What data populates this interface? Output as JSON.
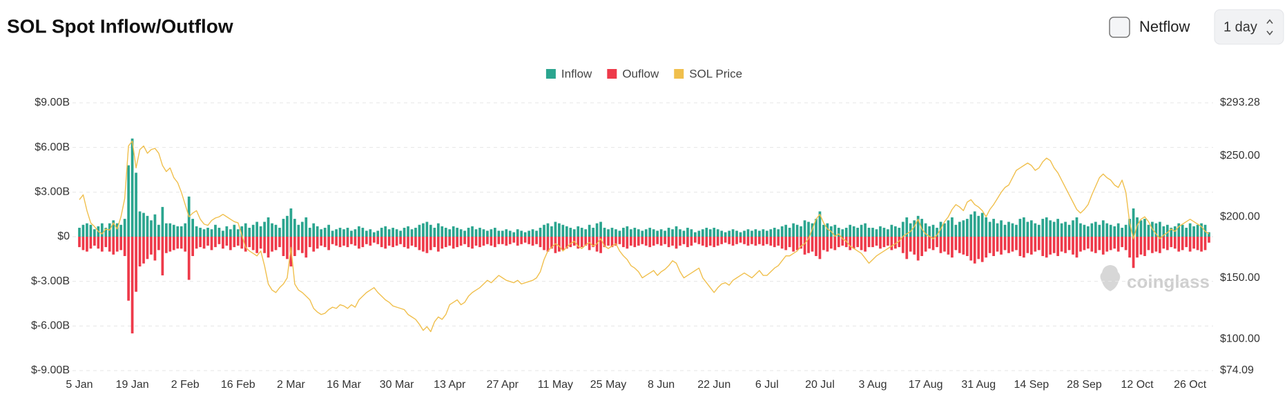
{
  "chart_data": {
    "type": "bar",
    "title": "SOL Spot Inflow/Outflow",
    "netflow_label": "Netflow",
    "interval": "1 day",
    "watermark": "coinglass",
    "legend": "top",
    "grid": true,
    "ylim": [
      -9,
      9
    ],
    "yticks": [
      {
        "value": 9,
        "label": "$9.00B"
      },
      {
        "value": 6,
        "label": "$6.00B"
      },
      {
        "value": 3,
        "label": "$3.00B"
      },
      {
        "value": 0,
        "label": "$0"
      },
      {
        "value": -3,
        "label": "$-3.00B"
      },
      {
        "value": -6,
        "label": "$-6.00B"
      },
      {
        "value": -9,
        "label": "$-9.00B"
      }
    ],
    "y2lim": [
      74.09,
      293.28
    ],
    "y2ticks": [
      {
        "value": 293.28,
        "label": "$293.28"
      },
      {
        "value": 250,
        "label": "$250.00"
      },
      {
        "value": 200,
        "label": "$200.00"
      },
      {
        "value": 150,
        "label": "$150.00"
      },
      {
        "value": 100,
        "label": "$100.00"
      },
      {
        "value": 74.09,
        "label": "$74.09"
      }
    ],
    "categories": [
      "5 Jan",
      null,
      null,
      null,
      null,
      null,
      null,
      null,
      null,
      null,
      null,
      null,
      null,
      null,
      "19 Jan",
      null,
      null,
      null,
      null,
      null,
      null,
      null,
      null,
      null,
      null,
      null,
      null,
      null,
      "2 Feb",
      null,
      null,
      null,
      null,
      null,
      null,
      null,
      null,
      null,
      null,
      null,
      null,
      null,
      "16 Feb",
      null,
      null,
      null,
      null,
      null,
      null,
      null,
      null,
      null,
      null,
      null,
      null,
      null,
      "2 Mar",
      null,
      null,
      null,
      null,
      null,
      null,
      null,
      null,
      null,
      null,
      null,
      null,
      null,
      "16 Mar",
      null,
      null,
      null,
      null,
      null,
      null,
      null,
      null,
      null,
      null,
      null,
      null,
      null,
      "30 Mar",
      null,
      null,
      null,
      null,
      null,
      null,
      null,
      null,
      null,
      null,
      null,
      null,
      null,
      "13 Apr",
      null,
      null,
      null,
      null,
      null,
      null,
      null,
      null,
      null,
      null,
      null,
      null,
      null,
      "27 Apr",
      null,
      null,
      null,
      null,
      null,
      null,
      null,
      null,
      null,
      null,
      null,
      null,
      null,
      "11 May",
      null,
      null,
      null,
      null,
      null,
      null,
      null,
      null,
      null,
      null,
      null,
      null,
      null,
      "25 May",
      null,
      null,
      null,
      null,
      null,
      null,
      null,
      null,
      null,
      null,
      null,
      null,
      null,
      "8 Jun",
      null,
      null,
      null,
      null,
      null,
      null,
      null,
      null,
      null,
      null,
      null,
      null,
      null,
      "22 Jun",
      null,
      null,
      null,
      null,
      null,
      null,
      null,
      null,
      null,
      null,
      null,
      null,
      null,
      "6 Jul",
      null,
      null,
      null,
      null,
      null,
      null,
      null,
      null,
      null,
      null,
      null,
      null,
      null,
      "20 Jul",
      null,
      null,
      null,
      null,
      null,
      null,
      null,
      null,
      null,
      null,
      null,
      null,
      null,
      "3 Aug",
      null,
      null,
      null,
      null,
      null,
      null,
      null,
      null,
      null,
      null,
      null,
      null,
      null,
      "17 Aug",
      null,
      null,
      null,
      null,
      null,
      null,
      null,
      null,
      null,
      null,
      null,
      null,
      null,
      "31 Aug",
      null,
      null,
      null,
      null,
      null,
      null,
      null,
      null,
      null,
      null,
      null,
      null,
      null,
      "14 Sep",
      null,
      null,
      null,
      null,
      null,
      null,
      null,
      null,
      null,
      null,
      null,
      null,
      null,
      "28 Sep",
      null,
      null,
      null,
      null,
      null,
      null,
      null,
      null,
      null,
      null,
      null,
      null,
      null,
      "12 Oct",
      null,
      null,
      null,
      null,
      null,
      null,
      null,
      null,
      null,
      null,
      null,
      null,
      null,
      "26 Oct",
      null,
      null,
      null,
      null,
      null
    ],
    "series": [
      {
        "name": "Inflow",
        "type": "bar",
        "color": "#2ba58f",
        "values": [
          0.6,
          0.8,
          0.9,
          0.8,
          0.5,
          0.7,
          0.9,
          0.6,
          0.9,
          1.1,
          0.9,
          0.8,
          1.2,
          4.8,
          6.6,
          4.3,
          1.7,
          1.6,
          1.4,
          1.1,
          1.5,
          0.8,
          2.0,
          0.9,
          0.9,
          0.8,
          0.7,
          0.7,
          0.9,
          2.7,
          1.2,
          0.7,
          0.6,
          0.5,
          0.6,
          0.5,
          0.8,
          0.6,
          0.4,
          0.7,
          0.5,
          0.8,
          0.5,
          0.7,
          0.9,
          0.6,
          0.8,
          1.0,
          0.7,
          1.0,
          1.3,
          0.9,
          0.8,
          0.6,
          1.2,
          1.4,
          1.9,
          1.2,
          0.8,
          1.0,
          1.3,
          0.6,
          0.9,
          0.7,
          0.5,
          0.6,
          0.8,
          0.4,
          0.5,
          0.6,
          0.5,
          0.6,
          0.4,
          0.5,
          0.7,
          0.6,
          0.4,
          0.5,
          0.3,
          0.4,
          0.6,
          0.7,
          0.5,
          0.6,
          0.5,
          0.4,
          0.6,
          0.7,
          0.5,
          0.6,
          0.8,
          0.9,
          1.0,
          0.8,
          0.6,
          0.9,
          0.7,
          0.6,
          0.5,
          0.7,
          0.6,
          0.5,
          0.4,
          0.6,
          0.7,
          0.5,
          0.6,
          0.5,
          0.4,
          0.5,
          0.6,
          0.4,
          0.4,
          0.5,
          0.4,
          0.3,
          0.5,
          0.4,
          0.3,
          0.4,
          0.5,
          0.4,
          0.6,
          0.8,
          0.9,
          0.7,
          1.0,
          0.9,
          0.8,
          0.7,
          0.6,
          0.5,
          0.7,
          0.6,
          0.5,
          0.8,
          0.6,
          0.9,
          1.0,
          0.6,
          0.5,
          0.6,
          0.5,
          0.4,
          0.6,
          0.7,
          0.5,
          0.6,
          0.5,
          0.4,
          0.5,
          0.6,
          0.5,
          0.4,
          0.5,
          0.4,
          0.6,
          0.5,
          0.7,
          0.5,
          0.4,
          0.6,
          0.5,
          0.3,
          0.4,
          0.5,
          0.6,
          0.5,
          0.6,
          0.5,
          0.4,
          0.3,
          0.4,
          0.5,
          0.4,
          0.3,
          0.4,
          0.5,
          0.4,
          0.5,
          0.4,
          0.5,
          0.4,
          0.5,
          0.6,
          0.5,
          0.7,
          0.8,
          0.6,
          0.9,
          0.8,
          0.7,
          1.1,
          1.0,
          0.9,
          1.2,
          1.7,
          0.8,
          0.9,
          0.7,
          0.8,
          0.6,
          0.5,
          0.6,
          0.8,
          0.7,
          0.6,
          0.8,
          0.9,
          0.6,
          0.6,
          0.5,
          0.7,
          0.6,
          0.5,
          0.8,
          0.7,
          0.6,
          1.0,
          1.3,
          0.9,
          1.1,
          1.4,
          1.2,
          0.9,
          0.7,
          0.8,
          0.6,
          1.0,
          0.9,
          1.1,
          1.3,
          0.8,
          1.0,
          1.1,
          1.2,
          1.5,
          1.7,
          1.4,
          1.6,
          1.3,
          1.0,
          1.2,
          0.9,
          1.1,
          0.8,
          1.0,
          0.9,
          0.8,
          1.2,
          1.3,
          1.0,
          1.1,
          0.9,
          0.8,
          1.2,
          1.3,
          1.1,
          1.0,
          1.2,
          0.9,
          1.0,
          0.8,
          1.1,
          1.3,
          0.9,
          0.8,
          0.7,
          0.9,
          1.0,
          0.8,
          1.1,
          0.9,
          0.8,
          0.7,
          0.9,
          0.6,
          0.8,
          1.2,
          1.9,
          1.3,
          1.1,
          1.2,
          0.8,
          1.0,
          0.9,
          1.0,
          0.7,
          0.8,
          0.6,
          0.7,
          0.9,
          0.8,
          0.6,
          0.9,
          0.7,
          0.8,
          0.9,
          0.8,
          0.3
        ]
      },
      {
        "name": "Ouflow",
        "type": "bar",
        "color": "#ee3a4a",
        "values": [
          -0.7,
          -0.9,
          -1.0,
          -0.8,
          -0.6,
          -0.8,
          -1.0,
          -0.7,
          -1.0,
          -1.2,
          -1.0,
          -0.9,
          -1.3,
          -4.3,
          -6.5,
          -3.7,
          -2.0,
          -1.8,
          -1.5,
          -1.2,
          -1.6,
          -0.9,
          -2.6,
          -1.1,
          -1.0,
          -0.9,
          -0.8,
          -0.8,
          -1.0,
          -2.9,
          -1.3,
          -0.8,
          -0.7,
          -0.8,
          -0.6,
          -0.9,
          -0.7,
          -0.5,
          -0.8,
          -0.6,
          -0.9,
          -0.7,
          -0.6,
          -0.8,
          -1.0,
          -0.7,
          -0.9,
          -1.1,
          -0.8,
          -1.1,
          -1.4,
          -1.0,
          -0.9,
          -0.7,
          -1.3,
          -1.5,
          -2.0,
          -1.3,
          -0.9,
          -1.1,
          -1.4,
          -0.7,
          -1.0,
          -0.8,
          -0.6,
          -0.7,
          -0.9,
          -0.5,
          -0.6,
          -0.7,
          -0.6,
          -0.7,
          -0.5,
          -0.6,
          -0.8,
          -0.7,
          -0.5,
          -0.6,
          -0.4,
          -0.5,
          -0.7,
          -0.8,
          -0.6,
          -0.7,
          -0.6,
          -0.5,
          -0.7,
          -0.8,
          -0.6,
          -0.7,
          -0.9,
          -1.0,
          -1.1,
          -0.9,
          -0.7,
          -1.0,
          -0.8,
          -0.7,
          -0.6,
          -0.8,
          -0.7,
          -0.6,
          -0.5,
          -0.7,
          -0.8,
          -0.6,
          -0.7,
          -0.6,
          -0.5,
          -0.6,
          -0.7,
          -0.5,
          -0.5,
          -0.6,
          -0.5,
          -0.4,
          -0.6,
          -0.5,
          -0.4,
          -0.5,
          -0.6,
          -0.5,
          -0.7,
          -0.9,
          -1.0,
          -0.8,
          -1.1,
          -1.0,
          -0.9,
          -0.8,
          -0.7,
          -0.6,
          -0.8,
          -0.7,
          -0.6,
          -0.9,
          -0.7,
          -1.0,
          -1.1,
          -0.7,
          -0.6,
          -0.7,
          -0.6,
          -0.5,
          -0.7,
          -0.8,
          -0.6,
          -0.7,
          -0.6,
          -0.5,
          -0.6,
          -0.7,
          -0.6,
          -0.5,
          -0.6,
          -0.5,
          -0.7,
          -0.6,
          -0.8,
          -0.6,
          -0.5,
          -0.7,
          -0.6,
          -0.4,
          -0.5,
          -0.6,
          -0.7,
          -0.6,
          -0.7,
          -0.6,
          -0.5,
          -0.4,
          -0.5,
          -0.6,
          -0.5,
          -0.4,
          -0.5,
          -0.6,
          -0.5,
          -0.6,
          -0.5,
          -0.6,
          -0.5,
          -0.6,
          -0.7,
          -0.6,
          -0.8,
          -0.9,
          -0.7,
          -1.0,
          -0.9,
          -0.8,
          -1.2,
          -1.1,
          -1.0,
          -1.3,
          -1.5,
          -0.9,
          -1.0,
          -0.8,
          -0.9,
          -0.7,
          -0.6,
          -0.7,
          -0.9,
          -0.8,
          -0.7,
          -0.9,
          -1.0,
          -0.7,
          -0.7,
          -0.6,
          -0.8,
          -0.7,
          -0.6,
          -0.9,
          -0.8,
          -0.7,
          -1.1,
          -1.5,
          -1.0,
          -1.2,
          -1.6,
          -1.3,
          -1.0,
          -0.8,
          -0.9,
          -0.7,
          -1.1,
          -1.0,
          -1.2,
          -1.4,
          -0.9,
          -1.1,
          -1.2,
          -1.3,
          -1.6,
          -1.8,
          -1.5,
          -1.7,
          -1.4,
          -1.1,
          -1.3,
          -1.0,
          -1.2,
          -0.9,
          -1.1,
          -1.0,
          -0.9,
          -1.3,
          -1.4,
          -1.1,
          -1.2,
          -1.0,
          -0.9,
          -1.3,
          -1.4,
          -1.2,
          -1.1,
          -1.3,
          -1.0,
          -1.1,
          -0.9,
          -1.2,
          -1.4,
          -1.0,
          -0.9,
          -0.8,
          -1.0,
          -1.1,
          -0.9,
          -1.2,
          -1.0,
          -0.9,
          -0.8,
          -1.0,
          -0.7,
          -0.9,
          -1.4,
          -2.1,
          -1.4,
          -1.2,
          -1.3,
          -0.9,
          -1.1,
          -1.0,
          -1.1,
          -0.8,
          -0.9,
          -0.7,
          -0.8,
          -1.0,
          -0.9,
          -0.7,
          -1.0,
          -0.8,
          -0.9,
          -1.0,
          -0.9,
          -0.4
        ]
      },
      {
        "name": "SOL Price",
        "type": "line",
        "axis": "y2",
        "color": "#f0bf4c",
        "values": [
          214,
          218,
          205,
          195,
          192,
          188,
          186,
          190,
          189,
          195,
          190,
          200,
          215,
          258,
          262,
          240,
          255,
          258,
          252,
          255,
          256,
          252,
          242,
          237,
          240,
          232,
          228,
          220,
          210,
          200,
          203,
          205,
          198,
          194,
          193,
          197,
          199,
          200,
          202,
          200,
          198,
          196,
          195,
          185,
          175,
          172,
          170,
          168,
          172,
          160,
          145,
          140,
          138,
          142,
          145,
          150,
          175,
          145,
          140,
          138,
          135,
          132,
          125,
          122,
          120,
          121,
          124,
          126,
          125,
          128,
          127,
          125,
          128,
          126,
          132,
          135,
          138,
          140,
          142,
          138,
          135,
          132,
          130,
          127,
          126,
          125,
          124,
          120,
          118,
          116,
          112,
          107,
          110,
          106,
          114,
          118,
          116,
          120,
          128,
          130,
          132,
          128,
          130,
          135,
          138,
          140,
          142,
          145,
          148,
          146,
          149,
          152,
          150,
          148,
          147,
          146,
          148,
          145,
          146,
          147,
          148,
          150,
          155,
          165,
          172,
          175,
          178,
          176,
          172,
          175,
          178,
          180,
          176,
          174,
          177,
          179,
          176,
          178,
          182,
          176,
          174,
          176,
          178,
          172,
          168,
          165,
          160,
          158,
          155,
          150,
          152,
          154,
          156,
          152,
          155,
          157,
          160,
          164,
          162,
          155,
          150,
          152,
          154,
          156,
          158,
          150,
          146,
          142,
          138,
          142,
          145,
          146,
          144,
          148,
          150,
          152,
          154,
          152,
          150,
          153,
          156,
          152,
          152,
          155,
          158,
          160,
          164,
          168,
          168,
          170,
          172,
          176,
          178,
          182,
          190,
          198,
          202,
          195,
          190,
          188,
          184,
          186,
          182,
          180,
          176,
          174,
          172,
          170,
          166,
          162,
          165,
          168,
          170,
          172,
          174,
          176,
          178,
          180,
          184,
          186,
          188,
          192,
          198,
          190,
          186,
          184,
          182,
          185,
          190,
          196,
          200,
          206,
          210,
          208,
          205,
          212,
          214,
          210,
          208,
          205,
          200,
          206,
          210,
          215,
          220,
          224,
          226,
          232,
          238,
          240,
          242,
          244,
          242,
          238,
          240,
          245,
          248,
          246,
          240,
          236,
          230,
          224,
          218,
          212,
          206,
          203,
          206,
          210,
          218,
          225,
          232,
          235,
          232,
          230,
          226,
          224,
          230,
          220,
          195,
          182,
          193,
          198,
          200,
          196,
          190,
          186,
          182,
          185,
          187,
          190,
          188,
          192,
          194,
          196,
          198,
          196,
          194,
          192,
          188,
          186
        ]
      }
    ]
  }
}
